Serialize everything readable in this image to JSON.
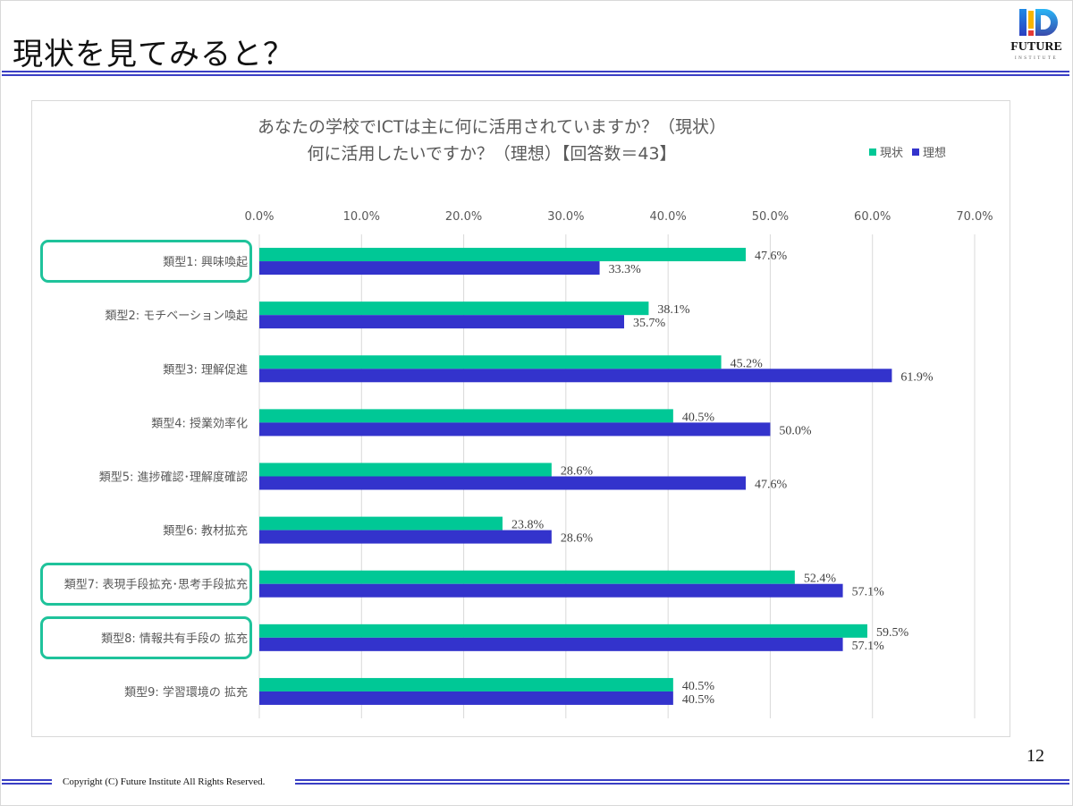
{
  "slide": {
    "title": "現状を見てみると？",
    "page_number": "12",
    "copyright": "Copyright (C) Future Institute All Rights Reserved.",
    "logo": {
      "name": "future-institute-logo",
      "word1": "FUTURE",
      "word2": "INSTITUTE"
    }
  },
  "colors": {
    "current": "#00c896",
    "ideal": "#3333cc",
    "rule": "#3a3fc4",
    "highlight": "#1fc39b"
  },
  "chart_data": {
    "type": "bar",
    "orientation": "horizontal",
    "title_line1": "あなたの学校でICTは主に何に活用されていますか？（現状）",
    "title_line2": "何に活用したいですか？（理想）【回答数＝43】",
    "xlabel": "",
    "ylabel": "",
    "xlim": [
      0,
      70
    ],
    "x_ticks": [
      "0.0%",
      "10.0%",
      "20.0%",
      "30.0%",
      "40.0%",
      "50.0%",
      "60.0%",
      "70.0%"
    ],
    "grid": true,
    "legend_position": "top-right",
    "categories": [
      "類型1: 興味喚起",
      "類型2: モチベーション喚起",
      "類型3: 理解促進",
      "類型4: 授業効率化",
      "類型5: 進捗確認･理解度確認",
      "類型6: 教材拡充",
      "類型7: 表現手段拡充･思考手段拡充",
      "類型8: 情報共有手段の 拡充",
      "類型9: 学習環境の 拡充"
    ],
    "highlighted_categories": [
      0,
      6,
      7
    ],
    "series": [
      {
        "name": "現状",
        "values": [
          47.6,
          38.1,
          45.2,
          40.5,
          28.6,
          23.8,
          52.4,
          59.5,
          40.5
        ],
        "labels": [
          "47.6%",
          "38.1%",
          "45.2%",
          "40.5%",
          "28.6%",
          "23.8%",
          "52.4%",
          "59.5%",
          "40.5%"
        ]
      },
      {
        "name": "理想",
        "values": [
          33.3,
          35.7,
          61.9,
          50.0,
          47.6,
          28.6,
          57.1,
          57.1,
          40.5
        ],
        "labels": [
          "33.3%",
          "35.7%",
          "61.9%",
          "50.0%",
          "47.6%",
          "28.6%",
          "57.1%",
          "57.1%",
          "40.5%"
        ]
      }
    ]
  }
}
